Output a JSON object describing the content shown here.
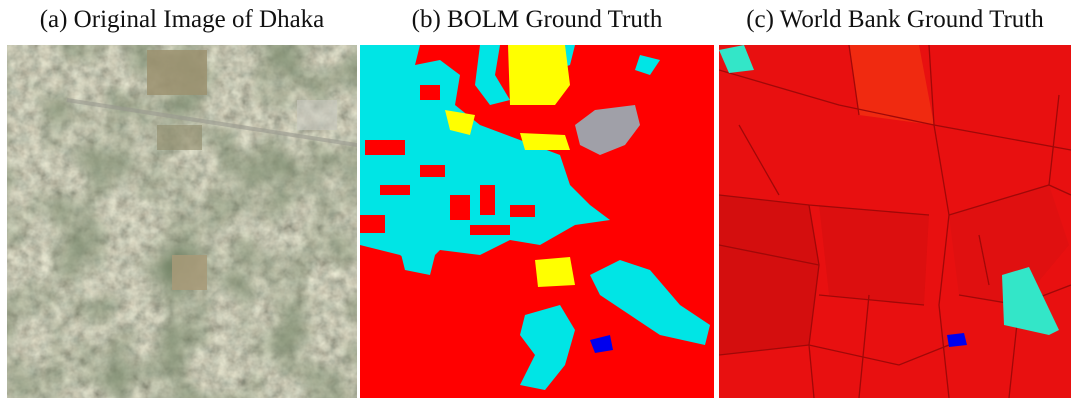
{
  "figure": {
    "panels": [
      {
        "caption": "(a) Original Image of Dhaka"
      },
      {
        "caption": "(b) BOLM Ground Truth"
      },
      {
        "caption": "(c) World Bank Ground Truth"
      }
    ]
  },
  "colors": {
    "built_up": "#ff0000",
    "vegetation": "#00e5e5",
    "open_space": "#ffff00",
    "gray_class": "#a0a0a8",
    "water": "#0000ee",
    "wb_red": "#e81010",
    "wb_dark_red": "#d40e0e",
    "wb_cyan": "#33e6c8"
  }
}
